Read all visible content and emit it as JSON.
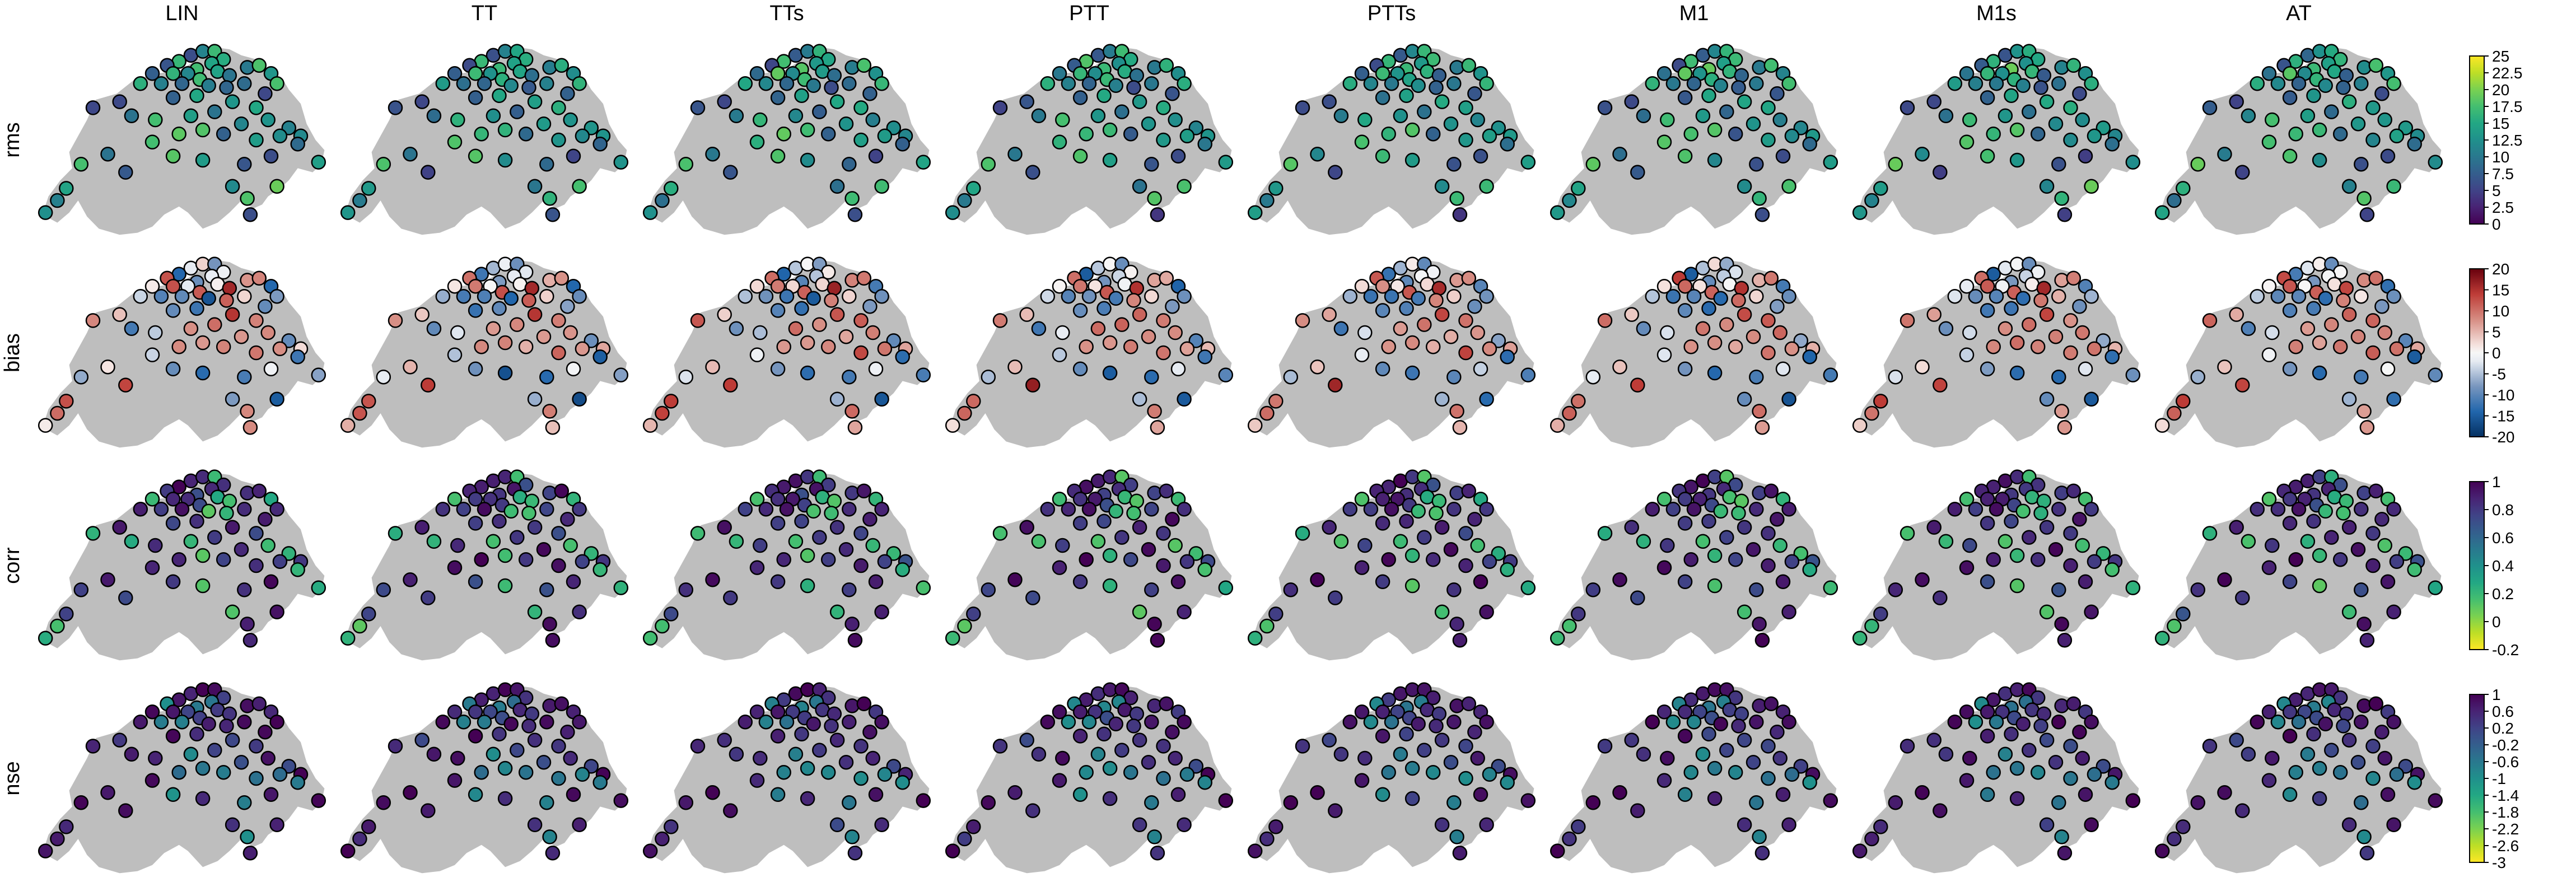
{
  "chart_data": {
    "type": "scatter",
    "columns": [
      "LIN",
      "TT",
      "TTs",
      "PTT",
      "PTTs",
      "M1",
      "M1s",
      "AT"
    ],
    "rows": [
      {
        "name": "rms",
        "colormap": "viridis",
        "range": [
          0,
          25
        ],
        "ticks": [
          "25",
          "22.5",
          "20",
          "17.5",
          "15",
          "12.5",
          "10",
          "7.5",
          "5",
          "2.5",
          "0"
        ]
      },
      {
        "name": "bias",
        "colormap": "diverging-red-blue",
        "range": [
          -20,
          20
        ],
        "ticks": [
          "20",
          "15",
          "10",
          "5",
          "0",
          "-5",
          "-10",
          "-15",
          "-20"
        ]
      },
      {
        "name": "corr",
        "colormap": "viridis-reversed",
        "range": [
          -0.2,
          1
        ],
        "ticks": [
          "1",
          "0.8",
          "0.6",
          "0.4",
          "0.2",
          "0",
          "-0.2"
        ]
      },
      {
        "name": "nse",
        "colormap": "viridis-reversed",
        "range": [
          -3,
          1
        ],
        "ticks": [
          "1",
          "0.6",
          "0.2",
          "-0.2",
          "-0.6",
          "-1",
          "-1.4",
          "-1.8",
          "-2.2",
          "-2.6",
          "-3"
        ]
      }
    ],
    "colors": {
      "map_fill": "#bebebe",
      "point_stroke": "#000000"
    }
  }
}
